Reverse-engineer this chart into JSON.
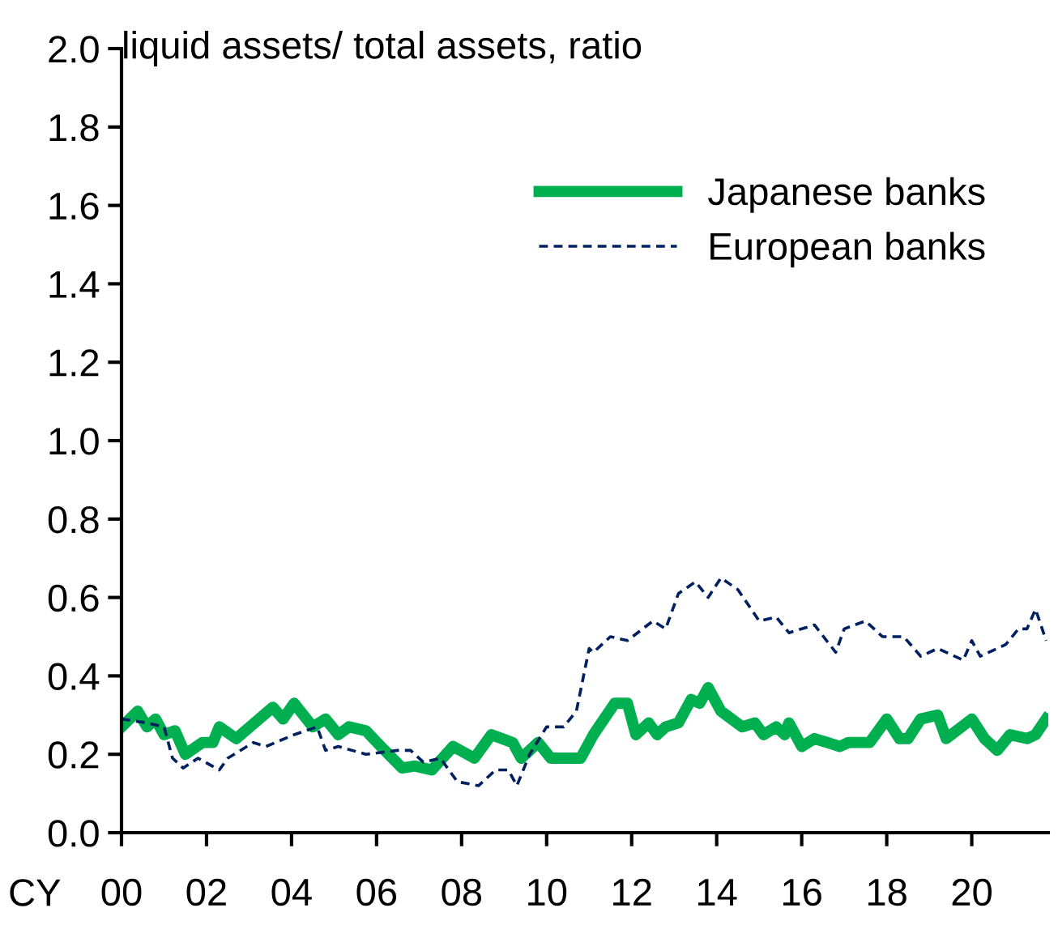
{
  "chart_data": {
    "type": "line",
    "title": "liquid assets/ total assets, ratio",
    "annotations": [
      "CY"
    ],
    "xlim": [
      0,
      21.8
    ],
    "xticks": [
      {
        "value": 0,
        "label": "00"
      },
      {
        "value": 2,
        "label": "02"
      },
      {
        "value": 4,
        "label": "04"
      },
      {
        "value": 6,
        "label": "06"
      },
      {
        "value": 8,
        "label": "08"
      },
      {
        "value": 10,
        "label": "10"
      },
      12,
      14,
      16,
      18,
      20
    ],
    "ylim": [
      0,
      2
    ],
    "yticks": [
      {
        "value": 0,
        "label": "0.0"
      },
      0.2,
      0.4,
      0.6,
      0.8,
      {
        "value": 1,
        "label": "1.0"
      },
      1.2,
      1.4,
      1.6,
      1.8,
      {
        "value": 2,
        "label": "2.0"
      }
    ],
    "grid": false,
    "legend": "top right",
    "series": [
      {
        "name": "Japanese banks",
        "color": "#00b050",
        "line_style": "solid",
        "x": [
          0,
          0.38,
          0.6,
          0.8,
          1.0,
          1.26,
          1.5,
          1.9,
          2.15,
          2.3,
          2.7,
          3.56,
          3.8,
          4.06,
          4.5,
          4.8,
          5.1,
          5.35,
          5.75,
          6.1,
          6.6,
          6.9,
          7.3,
          7.8,
          8.3,
          8.7,
          9.2,
          9.4,
          9.8,
          10.1,
          10.3,
          10.8,
          11.1,
          11.6,
          11.9,
          12.1,
          12.4,
          12.6,
          12.8,
          13.1,
          13.4,
          13.6,
          13.8,
          14.1,
          14.6,
          14.9,
          15.1,
          15.4,
          15.6,
          15.7,
          16.0,
          16.3,
          16.9,
          17.1,
          17.6,
          18.0,
          18.3,
          18.5,
          18.8,
          19.2,
          19.4,
          20.0,
          20.3,
          20.6,
          20.9,
          21.3,
          21.5,
          21.75
        ],
        "values": [
          0.27,
          0.31,
          0.27,
          0.29,
          0.25,
          0.26,
          0.2,
          0.23,
          0.23,
          0.27,
          0.24,
          0.32,
          0.29,
          0.33,
          0.27,
          0.29,
          0.25,
          0.27,
          0.26,
          0.22,
          0.165,
          0.17,
          0.16,
          0.22,
          0.19,
          0.25,
          0.23,
          0.19,
          0.23,
          0.19,
          0.19,
          0.19,
          0.25,
          0.33,
          0.33,
          0.25,
          0.28,
          0.25,
          0.27,
          0.28,
          0.34,
          0.33,
          0.37,
          0.31,
          0.27,
          0.28,
          0.25,
          0.27,
          0.25,
          0.28,
          0.22,
          0.24,
          0.22,
          0.23,
          0.23,
          0.29,
          0.24,
          0.24,
          0.29,
          0.3,
          0.24,
          0.29,
          0.24,
          0.21,
          0.25,
          0.24,
          0.25,
          0.29
        ]
      },
      {
        "name": "European banks",
        "color": "#002060",
        "line_style": "dashed",
        "x": [
          0,
          0.6,
          1.0,
          1.2,
          1.45,
          1.8,
          2.3,
          2.5,
          3.1,
          3.4,
          4.06,
          4.6,
          4.8,
          5.1,
          5.75,
          6.5,
          6.8,
          7.1,
          7.5,
          7.9,
          8.4,
          8.8,
          9.1,
          9.3,
          9.6,
          10.0,
          10.4,
          10.7,
          11.0,
          11.1,
          11.5,
          11.9,
          12.5,
          12.8,
          13.1,
          13.5,
          13.8,
          14.1,
          14.5,
          15.0,
          15.4,
          15.7,
          16.3,
          16.8,
          17.0,
          17.5,
          17.9,
          18.4,
          18.8,
          19.2,
          19.8,
          20.0,
          20.2,
          20.8,
          21.1,
          21.3,
          21.5,
          21.75
        ],
        "values": [
          0.29,
          0.28,
          0.27,
          0.19,
          0.165,
          0.19,
          0.16,
          0.19,
          0.23,
          0.22,
          0.25,
          0.27,
          0.21,
          0.22,
          0.2,
          0.21,
          0.21,
          0.18,
          0.19,
          0.13,
          0.12,
          0.16,
          0.16,
          0.12,
          0.2,
          0.27,
          0.27,
          0.31,
          0.47,
          0.46,
          0.5,
          0.49,
          0.54,
          0.52,
          0.61,
          0.64,
          0.6,
          0.65,
          0.62,
          0.54,
          0.55,
          0.51,
          0.53,
          0.46,
          0.52,
          0.54,
          0.5,
          0.5,
          0.45,
          0.47,
          0.44,
          0.49,
          0.45,
          0.48,
          0.52,
          0.52,
          0.57,
          0.49
        ]
      }
    ]
  }
}
